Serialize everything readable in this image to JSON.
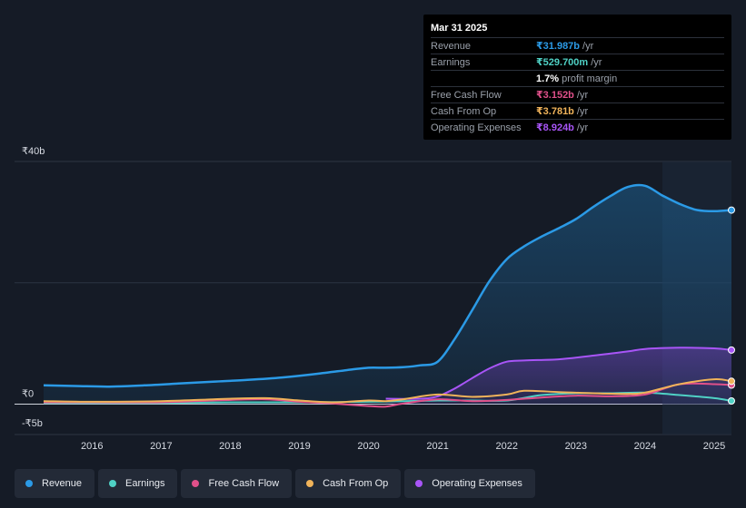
{
  "tooltip": {
    "date": "Mar 31 2025",
    "rows": [
      {
        "label": "Revenue",
        "value": "₹31.987b",
        "unit": "/yr",
        "color": "#2b9ae6"
      },
      {
        "label": "Earnings",
        "value": "₹529.700m",
        "unit": "/yr",
        "color": "#4fd1c5"
      },
      {
        "label": "",
        "value": "1.7%",
        "unit": "profit margin",
        "color": "#ffffff"
      },
      {
        "label": "Free Cash Flow",
        "value": "₹3.152b",
        "unit": "/yr",
        "color": "#e0508a"
      },
      {
        "label": "Cash From Op",
        "value": "₹3.781b",
        "unit": "/yr",
        "color": "#f0b35a"
      },
      {
        "label": "Operating Expenses",
        "value": "₹8.924b",
        "unit": "/yr",
        "color": "#a855f7"
      }
    ]
  },
  "legend": [
    {
      "label": "Revenue",
      "color": "#2b9ae6"
    },
    {
      "label": "Earnings",
      "color": "#4fd1c5"
    },
    {
      "label": "Free Cash Flow",
      "color": "#e0508a"
    },
    {
      "label": "Cash From Op",
      "color": "#f0b35a"
    },
    {
      "label": "Operating Expenses",
      "color": "#a855f7"
    }
  ],
  "chart_data": {
    "type": "area",
    "xlim": [
      2015.3,
      2025.25
    ],
    "ylim": [
      -5,
      40
    ],
    "ytick_labels": [
      {
        "value": 40,
        "label": "₹40b"
      },
      {
        "value": 0,
        "label": "₹0"
      },
      {
        "value": -5,
        "label": "-₹5b"
      }
    ],
    "xticks": [
      2016,
      2017,
      2018,
      2019,
      2020,
      2021,
      2022,
      2023,
      2024,
      2025
    ],
    "xtick_labels": [
      "2016",
      "2017",
      "2018",
      "2019",
      "2020",
      "2021",
      "2022",
      "2023",
      "2024",
      "2025"
    ],
    "gridlines": [
      40,
      20,
      0
    ],
    "forecast_shade_from": 2024.25,
    "series": [
      {
        "name": "Revenue",
        "color": "#2b9ae6",
        "x": [
          2015.3,
          2015.75,
          2016.25,
          2016.75,
          2017.25,
          2017.75,
          2018.25,
          2018.75,
          2019.25,
          2019.75,
          2020.0,
          2020.25,
          2020.5,
          2020.75,
          2021.0,
          2021.25,
          2021.5,
          2021.75,
          2022.0,
          2022.25,
          2022.5,
          2022.75,
          2023.0,
          2023.25,
          2023.5,
          2023.75,
          2024.0,
          2024.25,
          2024.5,
          2024.75,
          2025.0,
          2025.25
        ],
        "y": [
          3.1,
          3.0,
          2.9,
          3.1,
          3.4,
          3.7,
          4.0,
          4.4,
          5.0,
          5.7,
          6.0,
          6.0,
          6.1,
          6.4,
          7.0,
          10.8,
          15.5,
          20.3,
          23.9,
          26.0,
          27.6,
          29.0,
          30.5,
          32.5,
          34.3,
          35.8,
          36.0,
          34.4,
          33.0,
          32.0,
          31.8,
          31.99
        ]
      },
      {
        "name": "Earnings",
        "color": "#4fd1c5",
        "x": [
          2015.3,
          2016.0,
          2017.0,
          2018.0,
          2019.0,
          2020.0,
          2020.5,
          2021.0,
          2021.5,
          2022.0,
          2022.5,
          2023.0,
          2023.5,
          2024.0,
          2024.5,
          2025.0,
          2025.25
        ],
        "y": [
          0.2,
          0.2,
          0.2,
          0.3,
          0.3,
          0.4,
          0.5,
          0.6,
          0.6,
          0.6,
          1.5,
          1.8,
          1.8,
          1.9,
          1.5,
          1.0,
          0.53
        ]
      },
      {
        "name": "Free Cash Flow",
        "color": "#e0508a",
        "x": [
          2015.3,
          2016.0,
          2017.0,
          2017.75,
          2018.5,
          2019.0,
          2019.5,
          2020.0,
          2020.25,
          2020.5,
          2021.0,
          2021.5,
          2022.0,
          2022.5,
          2023.0,
          2023.5,
          2024.0,
          2024.5,
          2025.0,
          2025.25
        ],
        "y": [
          0.3,
          0.3,
          0.3,
          0.6,
          0.8,
          0.4,
          0.1,
          -0.3,
          -0.4,
          0.1,
          0.8,
          0.5,
          0.7,
          1.1,
          1.4,
          1.3,
          1.6,
          3.3,
          3.3,
          3.15
        ]
      },
      {
        "name": "Cash From Op",
        "color": "#f0b35a",
        "x": [
          2015.3,
          2016.0,
          2017.0,
          2017.75,
          2018.5,
          2019.0,
          2019.5,
          2020.0,
          2020.25,
          2020.5,
          2021.0,
          2021.5,
          2022.0,
          2022.25,
          2022.75,
          2023.25,
          2023.75,
          2024.0,
          2024.5,
          2025.0,
          2025.25
        ],
        "y": [
          0.5,
          0.4,
          0.5,
          0.8,
          1.0,
          0.6,
          0.3,
          0.6,
          0.5,
          0.8,
          1.6,
          1.2,
          1.6,
          2.2,
          2.0,
          1.8,
          1.7,
          1.9,
          3.3,
          4.1,
          3.78
        ]
      },
      {
        "name": "Operating Expenses",
        "color": "#a855f7",
        "x": [
          2020.25,
          2020.75,
          2021.0,
          2021.25,
          2021.5,
          2021.75,
          2022.0,
          2022.25,
          2022.75,
          2023.25,
          2023.75,
          2024.0,
          2024.5,
          2025.0,
          2025.25
        ],
        "y": [
          0.9,
          0.9,
          1.3,
          2.6,
          4.3,
          5.9,
          7.0,
          7.2,
          7.4,
          8.0,
          8.7,
          9.1,
          9.3,
          9.2,
          8.92
        ]
      }
    ]
  }
}
